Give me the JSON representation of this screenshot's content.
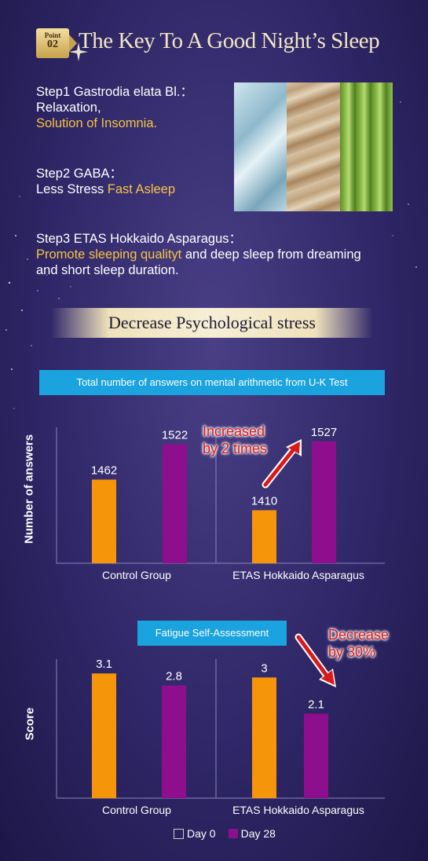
{
  "header": {
    "badge_top": "Point",
    "badge_num": "02",
    "title": "The Key To A Good Night’s Sleep"
  },
  "steps": [
    {
      "line1": "Step1 Gastrodia elata Bl.：",
      "line2": "Relaxation,",
      "highlight": "Solution of Insomnia."
    },
    {
      "line1": "Step2 GABA：",
      "plain": "Less Stress ",
      "highlight": "Fast Asleep"
    },
    {
      "line1": "Step3 ETAS Hokkaido Asparagus：",
      "highlight": "Promote sleeping qualityt",
      "rest": " and deep sleep from dreaming and short sleep duration."
    }
  ],
  "section_title": "Decrease Psychological stress",
  "colors": {
    "day0": "#f5960a",
    "day28": "#8e0f8e",
    "accent_text": "#f6c443",
    "caption_bg": "#1aa3de",
    "annotation": "#d81a1a"
  },
  "legend": [
    {
      "label": "Day 0",
      "icon": "outline-square"
    },
    {
      "label": "Day 28",
      "icon": "purple-square"
    }
  ],
  "chart_data": [
    {
      "type": "bar",
      "title": "Total number of answers on mental arithmetic from U-K Test",
      "ylabel": "Number of answers",
      "xlabel": "",
      "categories": [
        "Control Group",
        "ETAS Hokkaido Asparagus"
      ],
      "series": [
        {
          "name": "Day 0",
          "values": [
            1462,
            1410
          ]
        },
        {
          "name": "Day 28",
          "values": [
            1522,
            1527
          ]
        }
      ],
      "ylim": [
        1320,
        1540
      ],
      "annotation": {
        "text": [
          "Increased",
          "by 2 times"
        ],
        "arrow": "up"
      }
    },
    {
      "type": "bar",
      "title": "Fatigue Self-Assessment",
      "ylabel": "Score",
      "xlabel": "",
      "categories": [
        "Control Group",
        "ETAS Hokkaido Asparagus"
      ],
      "series": [
        {
          "name": "Day 0",
          "values": [
            3.1,
            3
          ]
        },
        {
          "name": "Day 28",
          "values": [
            2.8,
            2.1
          ]
        }
      ],
      "ylim": [
        0,
        3.3
      ],
      "annotation": {
        "text": [
          "Decrease",
          "by 30%"
        ],
        "arrow": "down"
      }
    }
  ]
}
